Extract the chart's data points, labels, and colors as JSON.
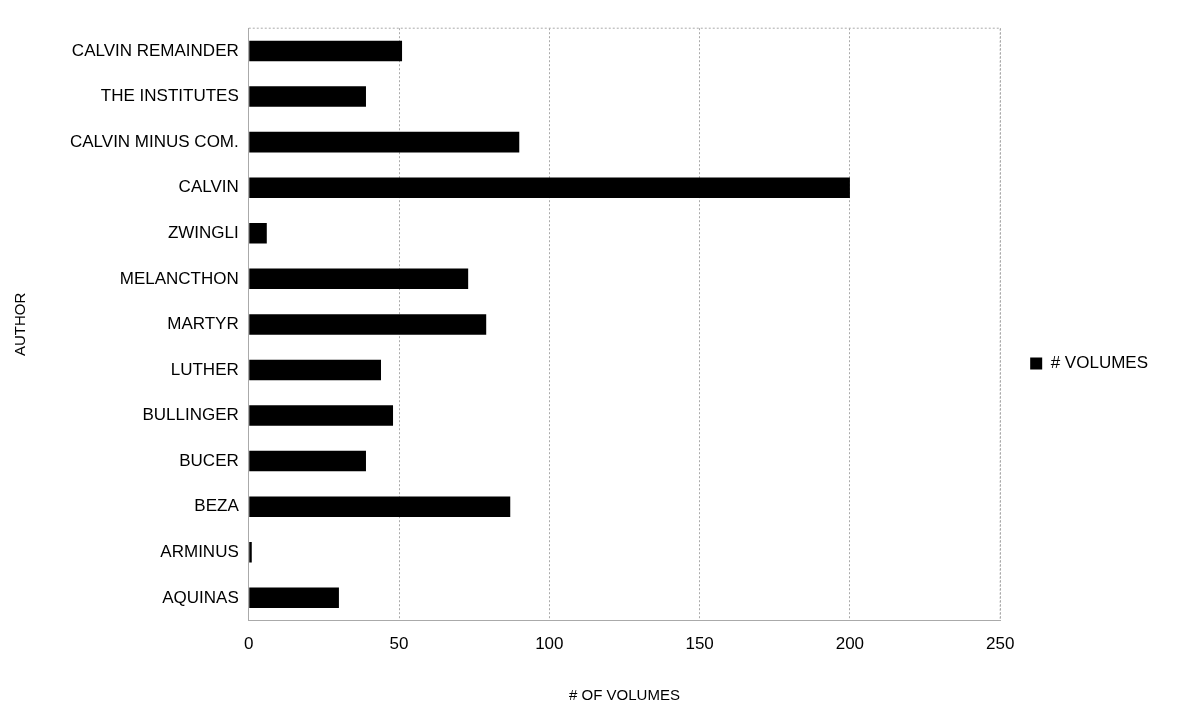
{
  "chart_data": {
    "type": "bar",
    "orientation": "horizontal",
    "xlabel": "# OF VOLUMES",
    "ylabel": "AUTHOR",
    "categories": [
      "CALVIN REMAINDER",
      "THE INSTITUTES",
      "CALVIN MINUS COM.",
      "CALVIN",
      "ZWINGLI",
      "MELANCTHON",
      "MARTYR",
      "LUTHER",
      "BULLINGER",
      "BUCER",
      "BEZA",
      "ARMINUS",
      "AQUINAS"
    ],
    "series": [
      {
        "name": "# VOLUMES",
        "color": "#000000",
        "values": [
          51,
          39,
          90,
          200,
          6,
          73,
          79,
          44,
          48,
          39,
          87,
          1,
          30
        ]
      }
    ],
    "xlim": [
      0,
      250
    ],
    "xticks": [
      0,
      50,
      100,
      150,
      200,
      250
    ],
    "grid": "x",
    "legend": "right"
  }
}
